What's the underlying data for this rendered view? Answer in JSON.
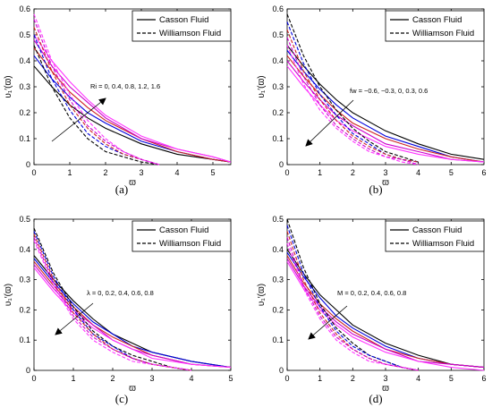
{
  "chart_data": [
    {
      "type": "line",
      "caption": "(a)",
      "xlabel": "ϖ",
      "ylabel": "υ₁′(ϖ)",
      "xlim": [
        0,
        5.5
      ],
      "ylim": [
        0,
        0.6
      ],
      "xticks": [
        "0",
        "1",
        "2",
        "3",
        "4",
        "5"
      ],
      "yticks": [
        "0",
        "0.1",
        "0.2",
        "0.3",
        "0.4",
        "0.5",
        "0.6"
      ],
      "legend": [
        "Casson Fluid",
        "Williamson Fluid"
      ],
      "annotation": "Ri = 0, 0.4, 0.8, 1.2, 1.6",
      "series": [
        {
          "color": "#000000",
          "style": "solid",
          "x": [
            0,
            0.5,
            1,
            1.5,
            2,
            3,
            4,
            5,
            5.5
          ],
          "y": [
            0.38,
            0.3,
            0.23,
            0.18,
            0.14,
            0.08,
            0.04,
            0.02,
            0.01
          ]
        },
        {
          "color": "#0000dd",
          "style": "solid",
          "x": [
            0,
            0.5,
            1,
            1.5,
            2,
            3,
            4,
            5,
            5.5
          ],
          "y": [
            0.42,
            0.33,
            0.26,
            0.2,
            0.16,
            0.09,
            0.05,
            0.02,
            0.01
          ]
        },
        {
          "color": "#cc2222",
          "style": "solid",
          "x": [
            0,
            0.5,
            1,
            1.5,
            2,
            3,
            4,
            5,
            5.5
          ],
          "y": [
            0.45,
            0.36,
            0.28,
            0.22,
            0.17,
            0.1,
            0.05,
            0.02,
            0.01
          ]
        },
        {
          "color": "#cc00cc",
          "style": "solid",
          "x": [
            0,
            0.5,
            1,
            1.5,
            2,
            3,
            4,
            5,
            5.5
          ],
          "y": [
            0.48,
            0.38,
            0.3,
            0.24,
            0.18,
            0.1,
            0.06,
            0.03,
            0.01
          ]
        },
        {
          "color": "#ff33ff",
          "style": "solid",
          "x": [
            0,
            0.5,
            1,
            1.5,
            2,
            3,
            4,
            5,
            5.5
          ],
          "y": [
            0.5,
            0.4,
            0.32,
            0.25,
            0.19,
            0.11,
            0.06,
            0.03,
            0.01
          ]
        },
        {
          "color": "#000000",
          "style": "dashed",
          "x": [
            0,
            0.5,
            1,
            1.5,
            2,
            2.5,
            3,
            3.5
          ],
          "y": [
            0.46,
            0.3,
            0.18,
            0.1,
            0.05,
            0.03,
            0.01,
            0.0
          ]
        },
        {
          "color": "#0000dd",
          "style": "dashed",
          "x": [
            0,
            0.5,
            1,
            1.5,
            2,
            2.5,
            3,
            3.5
          ],
          "y": [
            0.5,
            0.33,
            0.21,
            0.12,
            0.07,
            0.04,
            0.02,
            0.0
          ]
        },
        {
          "color": "#cc2222",
          "style": "dashed",
          "x": [
            0,
            0.5,
            1,
            1.5,
            2,
            2.5,
            3,
            3.5
          ],
          "y": [
            0.53,
            0.36,
            0.23,
            0.14,
            0.08,
            0.04,
            0.02,
            0.0
          ]
        },
        {
          "color": "#cc00cc",
          "style": "dashed",
          "x": [
            0,
            0.5,
            1,
            1.5,
            2,
            2.5,
            3,
            3.5
          ],
          "y": [
            0.56,
            0.38,
            0.25,
            0.15,
            0.09,
            0.05,
            0.02,
            0.0
          ]
        },
        {
          "color": "#ff33ff",
          "style": "dashed",
          "x": [
            0,
            0.5,
            1,
            1.5,
            2,
            2.5,
            3,
            3.5
          ],
          "y": [
            0.58,
            0.4,
            0.27,
            0.17,
            0.1,
            0.05,
            0.02,
            0.0
          ]
        }
      ]
    },
    {
      "type": "line",
      "caption": "(b)",
      "xlabel": "ϖ",
      "ylabel": "υ₁′(ϖ)",
      "xlim": [
        0,
        6
      ],
      "ylim": [
        0,
        0.6
      ],
      "xticks": [
        "0",
        "1",
        "2",
        "3",
        "4",
        "5",
        "6"
      ],
      "yticks": [
        "0",
        "0.1",
        "0.2",
        "0.3",
        "0.4",
        "0.5",
        "0.6"
      ],
      "legend": [
        "Casson Fluid",
        "Williamson Fluid"
      ],
      "annotation": "fw = −0.6, −0.3, 0, 0.3, 0.6",
      "series": [
        {
          "color": "#000000",
          "style": "solid",
          "x": [
            0,
            0.5,
            1,
            1.5,
            2,
            3,
            4,
            5,
            6
          ],
          "y": [
            0.46,
            0.38,
            0.31,
            0.25,
            0.2,
            0.13,
            0.08,
            0.04,
            0.02
          ]
        },
        {
          "color": "#0000dd",
          "style": "solid",
          "x": [
            0,
            0.5,
            1,
            1.5,
            2,
            3,
            4,
            5,
            6
          ],
          "y": [
            0.44,
            0.36,
            0.29,
            0.23,
            0.18,
            0.11,
            0.07,
            0.03,
            0.01
          ]
        },
        {
          "color": "#cc2222",
          "style": "solid",
          "x": [
            0,
            0.5,
            1,
            1.5,
            2,
            3,
            4,
            5,
            6
          ],
          "y": [
            0.42,
            0.34,
            0.27,
            0.21,
            0.16,
            0.1,
            0.06,
            0.03,
            0.01
          ]
        },
        {
          "color": "#cc00cc",
          "style": "solid",
          "x": [
            0,
            0.5,
            1,
            1.5,
            2,
            3,
            4,
            5,
            6
          ],
          "y": [
            0.4,
            0.32,
            0.25,
            0.19,
            0.15,
            0.08,
            0.05,
            0.02,
            0.01
          ]
        },
        {
          "color": "#ff33ff",
          "style": "solid",
          "x": [
            0,
            0.5,
            1,
            1.5,
            2,
            3,
            4,
            5,
            6
          ],
          "y": [
            0.38,
            0.3,
            0.23,
            0.17,
            0.13,
            0.07,
            0.04,
            0.02,
            0.01
          ]
        },
        {
          "color": "#000000",
          "style": "dashed",
          "x": [
            0,
            0.5,
            1,
            1.5,
            2,
            2.5,
            3,
            3.5,
            4
          ],
          "y": [
            0.58,
            0.42,
            0.3,
            0.21,
            0.14,
            0.09,
            0.05,
            0.03,
            0.01
          ]
        },
        {
          "color": "#0000dd",
          "style": "dashed",
          "x": [
            0,
            0.5,
            1,
            1.5,
            2,
            2.5,
            3,
            3.5,
            4
          ],
          "y": [
            0.55,
            0.39,
            0.27,
            0.19,
            0.12,
            0.08,
            0.04,
            0.02,
            0.01
          ]
        },
        {
          "color": "#cc2222",
          "style": "dashed",
          "x": [
            0,
            0.5,
            1,
            1.5,
            2,
            2.5,
            3,
            3.5,
            4
          ],
          "y": [
            0.52,
            0.36,
            0.25,
            0.17,
            0.11,
            0.07,
            0.04,
            0.02,
            0.01
          ]
        },
        {
          "color": "#cc00cc",
          "style": "dashed",
          "x": [
            0,
            0.5,
            1,
            1.5,
            2,
            2.5,
            3,
            3.5,
            4
          ],
          "y": [
            0.49,
            0.34,
            0.23,
            0.15,
            0.1,
            0.06,
            0.03,
            0.02,
            0.0
          ]
        },
        {
          "color": "#ff33ff",
          "style": "dashed",
          "x": [
            0,
            0.5,
            1,
            1.5,
            2,
            2.5,
            3,
            3.5,
            4
          ],
          "y": [
            0.46,
            0.31,
            0.21,
            0.14,
            0.09,
            0.05,
            0.03,
            0.01,
            0.0
          ]
        }
      ]
    },
    {
      "type": "line",
      "caption": "(c)",
      "xlabel": "ϖ",
      "ylabel": "υ₁′(ϖ)",
      "xlim": [
        0,
        5
      ],
      "ylim": [
        0,
        0.5
      ],
      "xticks": [
        "0",
        "1",
        "2",
        "3",
        "4",
        "5"
      ],
      "yticks": [
        "0",
        "0.1",
        "0.2",
        "0.3",
        "0.4",
        "0.5"
      ],
      "legend": [
        "Casson Fluid",
        "Williamson Fluid"
      ],
      "annotation": "λ = 0, 0.2, 0.4, 0.6, 0.8",
      "series": [
        {
          "color": "#000000",
          "style": "solid",
          "x": [
            0,
            0.5,
            1,
            1.5,
            2,
            2.5,
            3,
            4,
            5
          ],
          "y": [
            0.38,
            0.3,
            0.23,
            0.17,
            0.12,
            0.09,
            0.06,
            0.03,
            0.01
          ]
        },
        {
          "color": "#0000dd",
          "style": "solid",
          "x": [
            0,
            0.5,
            1,
            1.5,
            2,
            2.5,
            3,
            4,
            5
          ],
          "y": [
            0.37,
            0.29,
            0.22,
            0.16,
            0.12,
            0.08,
            0.06,
            0.03,
            0.01
          ]
        },
        {
          "color": "#cc2222",
          "style": "solid",
          "x": [
            0,
            0.5,
            1,
            1.5,
            2,
            2.5,
            3,
            4,
            5
          ],
          "y": [
            0.36,
            0.28,
            0.21,
            0.15,
            0.11,
            0.08,
            0.05,
            0.02,
            0.01
          ]
        },
        {
          "color": "#cc00cc",
          "style": "solid",
          "x": [
            0,
            0.5,
            1,
            1.5,
            2,
            2.5,
            3,
            4,
            5
          ],
          "y": [
            0.35,
            0.27,
            0.2,
            0.15,
            0.1,
            0.07,
            0.05,
            0.02,
            0.01
          ]
        },
        {
          "color": "#ff33ff",
          "style": "solid",
          "x": [
            0,
            0.5,
            1,
            1.5,
            2,
            2.5,
            3,
            4,
            5
          ],
          "y": [
            0.34,
            0.26,
            0.19,
            0.14,
            0.1,
            0.07,
            0.04,
            0.02,
            0.01
          ]
        },
        {
          "color": "#000000",
          "style": "dashed",
          "x": [
            0,
            0.5,
            1,
            1.5,
            2,
            2.5,
            3,
            3.5,
            4
          ],
          "y": [
            0.47,
            0.32,
            0.21,
            0.13,
            0.08,
            0.05,
            0.03,
            0.01,
            0.0
          ]
        },
        {
          "color": "#0000dd",
          "style": "dashed",
          "x": [
            0,
            0.5,
            1,
            1.5,
            2,
            2.5,
            3,
            3.5,
            4
          ],
          "y": [
            0.46,
            0.31,
            0.2,
            0.12,
            0.08,
            0.04,
            0.02,
            0.01,
            0.0
          ]
        },
        {
          "color": "#cc2222",
          "style": "dashed",
          "x": [
            0,
            0.5,
            1,
            1.5,
            2,
            2.5,
            3,
            3.5,
            4
          ],
          "y": [
            0.45,
            0.3,
            0.19,
            0.12,
            0.07,
            0.04,
            0.02,
            0.01,
            0.0
          ]
        },
        {
          "color": "#cc00cc",
          "style": "dashed",
          "x": [
            0,
            0.5,
            1,
            1.5,
            2,
            2.5,
            3,
            3.5,
            4
          ],
          "y": [
            0.44,
            0.29,
            0.18,
            0.11,
            0.07,
            0.04,
            0.02,
            0.01,
            0.0
          ]
        },
        {
          "color": "#ff33ff",
          "style": "dashed",
          "x": [
            0,
            0.5,
            1,
            1.5,
            2,
            2.5,
            3,
            3.5,
            4
          ],
          "y": [
            0.43,
            0.28,
            0.17,
            0.1,
            0.06,
            0.03,
            0.02,
            0.01,
            0.0
          ]
        }
      ]
    },
    {
      "type": "line",
      "caption": "(d)",
      "xlabel": "ϖ",
      "ylabel": "υ₁′(ϖ)",
      "xlim": [
        0,
        6
      ],
      "ylim": [
        0,
        0.5
      ],
      "xticks": [
        "0",
        "1",
        "2",
        "3",
        "4",
        "5",
        "6"
      ],
      "yticks": [
        "0",
        "0.1",
        "0.2",
        "0.3",
        "0.4",
        "0.5"
      ],
      "legend": [
        "Casson Fluid",
        "Williamson Fluid"
      ],
      "annotation": "M = 0, 0.2, 0.4, 0.6, 0.8",
      "series": [
        {
          "color": "#000000",
          "style": "solid",
          "x": [
            0,
            0.5,
            1,
            1.5,
            2,
            3,
            4,
            5,
            6
          ],
          "y": [
            0.4,
            0.32,
            0.25,
            0.2,
            0.15,
            0.09,
            0.05,
            0.02,
            0.01
          ]
        },
        {
          "color": "#0000dd",
          "style": "solid",
          "x": [
            0,
            0.5,
            1,
            1.5,
            2,
            3,
            4,
            5,
            6
          ],
          "y": [
            0.39,
            0.31,
            0.24,
            0.18,
            0.14,
            0.08,
            0.04,
            0.02,
            0.01
          ]
        },
        {
          "color": "#cc2222",
          "style": "solid",
          "x": [
            0,
            0.5,
            1,
            1.5,
            2,
            3,
            4,
            5,
            6
          ],
          "y": [
            0.38,
            0.29,
            0.22,
            0.17,
            0.13,
            0.07,
            0.04,
            0.02,
            0.01
          ]
        },
        {
          "color": "#cc00cc",
          "style": "solid",
          "x": [
            0,
            0.5,
            1,
            1.5,
            2,
            3,
            4,
            5,
            6
          ],
          "y": [
            0.37,
            0.28,
            0.21,
            0.16,
            0.12,
            0.07,
            0.03,
            0.02,
            0.01
          ]
        },
        {
          "color": "#ff33ff",
          "style": "solid",
          "x": [
            0,
            0.5,
            1,
            1.5,
            2,
            3,
            4,
            5,
            6
          ],
          "y": [
            0.36,
            0.27,
            0.2,
            0.15,
            0.11,
            0.06,
            0.03,
            0.01,
            0.0
          ]
        },
        {
          "color": "#000000",
          "style": "dashed",
          "x": [
            0,
            0.5,
            1,
            1.5,
            2,
            2.5,
            3,
            3.5,
            4
          ],
          "y": [
            0.5,
            0.34,
            0.22,
            0.14,
            0.09,
            0.05,
            0.03,
            0.01,
            0.0
          ]
        },
        {
          "color": "#0000dd",
          "style": "dashed",
          "x": [
            0,
            0.5,
            1,
            1.5,
            2,
            2.5,
            3,
            3.5,
            4
          ],
          "y": [
            0.48,
            0.32,
            0.21,
            0.13,
            0.08,
            0.05,
            0.03,
            0.01,
            0.0
          ]
        },
        {
          "color": "#cc2222",
          "style": "dashed",
          "x": [
            0,
            0.5,
            1,
            1.5,
            2,
            2.5,
            3,
            3.5,
            4
          ],
          "y": [
            0.46,
            0.3,
            0.19,
            0.12,
            0.07,
            0.04,
            0.02,
            0.01,
            0.0
          ]
        },
        {
          "color": "#cc00cc",
          "style": "dashed",
          "x": [
            0,
            0.5,
            1,
            1.5,
            2,
            2.5,
            3,
            3.5,
            4
          ],
          "y": [
            0.44,
            0.28,
            0.18,
            0.11,
            0.07,
            0.04,
            0.02,
            0.01,
            0.0
          ]
        },
        {
          "color": "#ff33ff",
          "style": "dashed",
          "x": [
            0,
            0.5,
            1,
            1.5,
            2,
            2.5,
            3,
            3.5,
            4
          ],
          "y": [
            0.42,
            0.27,
            0.17,
            0.1,
            0.06,
            0.03,
            0.02,
            0.01,
            0.0
          ]
        }
      ]
    }
  ]
}
